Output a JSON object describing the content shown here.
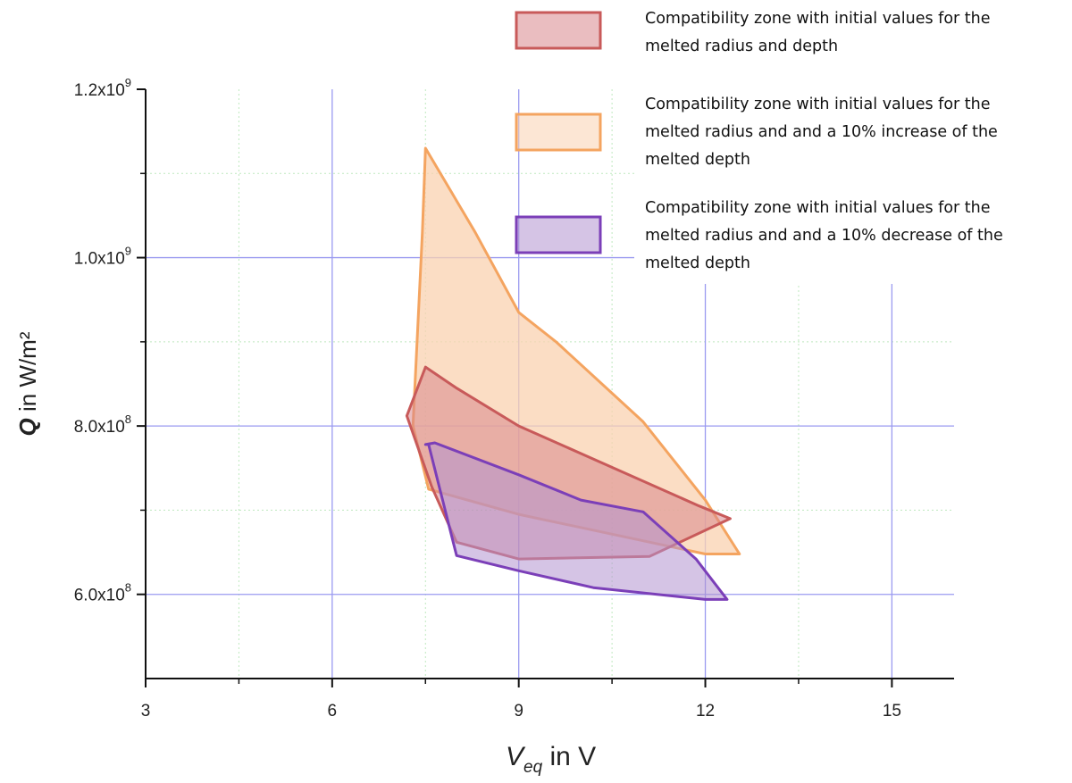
{
  "chart_data": {
    "type": "area",
    "title": "",
    "xlabel": {
      "main": "V",
      "sub": "eq",
      "rest": " in V"
    },
    "ylabel": {
      "bold": "Q",
      "rest": " in W/m²"
    },
    "xlim": [
      3,
      16
    ],
    "ylim": [
      500000000,
      1200000000
    ],
    "x_ticks": [
      {
        "value": 3,
        "label": "3"
      },
      {
        "value": 6,
        "label": "6"
      },
      {
        "value": 9,
        "label": "9"
      },
      {
        "value": 12,
        "label": "12"
      },
      {
        "value": 15,
        "label": "15"
      }
    ],
    "y_ticks": [
      {
        "value": 600000000,
        "base": "6.0x10",
        "exp": "8"
      },
      {
        "value": 800000000,
        "base": "8.0x10",
        "exp": "8"
      },
      {
        "value": 1000000000,
        "base": "1.0x10",
        "exp": "9"
      },
      {
        "value": 1200000000,
        "base": "1.2x10",
        "exp": "9"
      }
    ],
    "grid": true,
    "legend_position": "top-right",
    "series": [
      {
        "name": "Compatibility zone with initial values for the melted radius and a 10% increase of the melted depth",
        "legend_lines": [
          "Compatibility zone with initial values for the",
          "melted radius and and a 10% increase of the",
          "melted depth"
        ],
        "stroke": "#f4a460",
        "fill": "#f9d2b0",
        "points": [
          [
            7.5,
            1130000000
          ],
          [
            8.3,
            1030000000
          ],
          [
            9.0,
            935000000
          ],
          [
            9.6,
            900000000
          ],
          [
            11.0,
            805000000
          ],
          [
            12.0,
            712000000
          ],
          [
            12.55,
            648000000
          ],
          [
            12.0,
            648000000
          ],
          [
            9.0,
            695000000
          ],
          [
            7.55,
            725000000
          ],
          [
            7.3,
            800000000
          ],
          [
            7.45,
            1030000000
          ]
        ]
      },
      {
        "name": "Compatibility zone with initial values for the melted radius and depth",
        "legend_lines": [
          "Compatibility zone with initial values for the",
          "melted radius and depth"
        ],
        "stroke": "#c85a5a",
        "fill": "#d9878c",
        "points": [
          [
            7.2,
            812000000
          ],
          [
            7.5,
            870000000
          ],
          [
            8.0,
            845000000
          ],
          [
            9.0,
            800000000
          ],
          [
            11.9,
            705000000
          ],
          [
            12.4,
            690000000
          ],
          [
            11.1,
            645000000
          ],
          [
            9.0,
            642000000
          ],
          [
            8.0,
            662000000
          ],
          [
            7.6,
            728000000
          ]
        ]
      },
      {
        "name": "Compatibility zone with initial values for the melted radius and a 10% decrease of the melted depth",
        "legend_lines": [
          "Compatibility zone with initial values for the",
          "melted radius and and a 10% decrease of the",
          "melted depth"
        ],
        "stroke": "#7b3fb8",
        "fill": "#b294cf",
        "points": [
          [
            7.5,
            778000000
          ],
          [
            7.65,
            780000000
          ],
          [
            9.0,
            742000000
          ],
          [
            10.0,
            712000000
          ],
          [
            11.0,
            698000000
          ],
          [
            11.85,
            642000000
          ],
          [
            12.35,
            594000000
          ],
          [
            12.0,
            594000000
          ],
          [
            10.2,
            608000000
          ],
          [
            9.0,
            628000000
          ],
          [
            8.0,
            646000000
          ],
          [
            7.55,
            778000000
          ]
        ]
      }
    ]
  }
}
